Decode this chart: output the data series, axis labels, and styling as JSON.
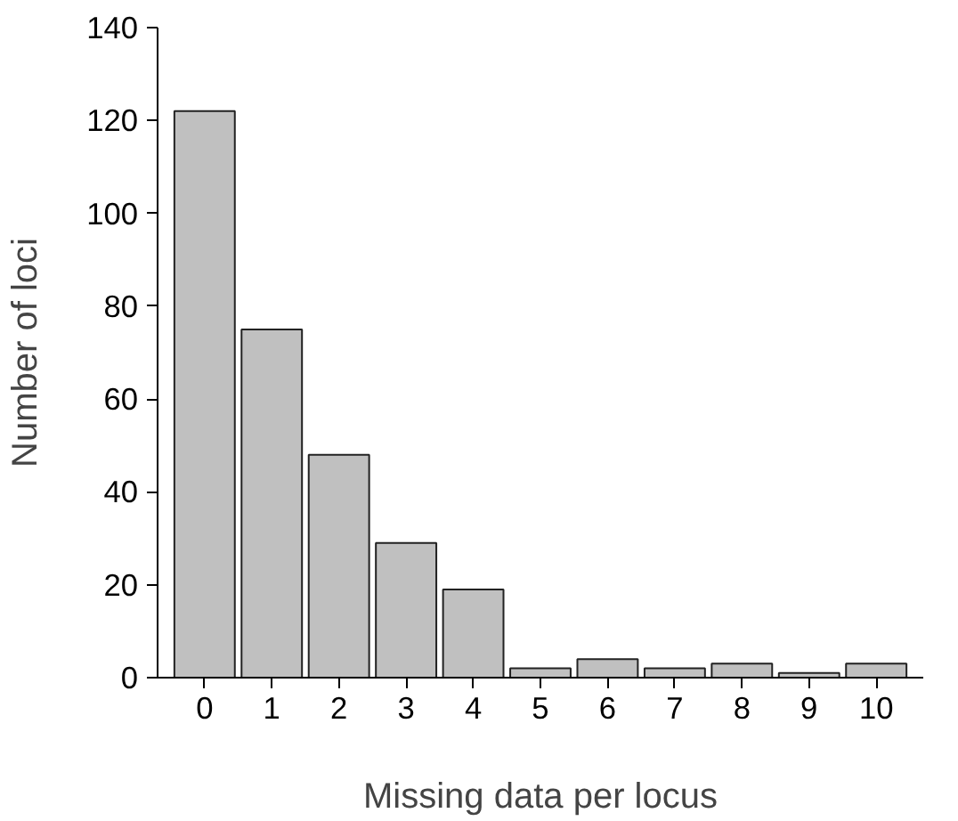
{
  "chart_data": {
    "type": "bar",
    "xlabel": "Missing data per locus",
    "ylabel": "Number of loci",
    "categories": [
      "0",
      "1",
      "2",
      "3",
      "4",
      "5",
      "6",
      "7",
      "8",
      "9",
      "10"
    ],
    "values": [
      122,
      75,
      48,
      29,
      19,
      2,
      4,
      2,
      3,
      1,
      3
    ],
    "color": "#c0c0c0",
    "ylim": [
      0,
      140
    ],
    "yticks": [
      0,
      20,
      40,
      60,
      80,
      100,
      120,
      140
    ],
    "grid": false
  }
}
